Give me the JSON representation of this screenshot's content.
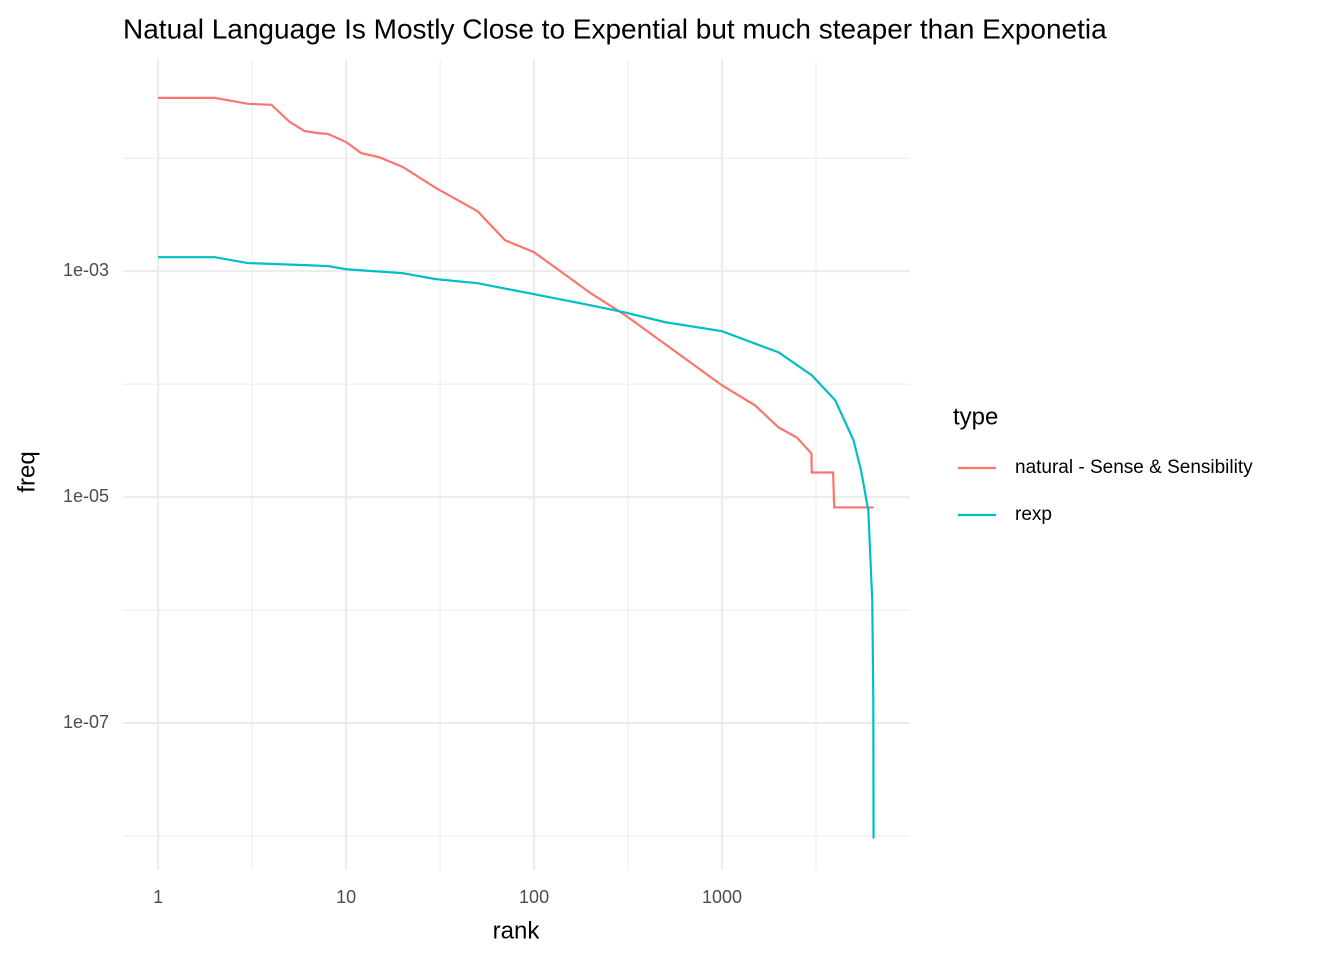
{
  "chart_data": {
    "type": "line",
    "title": "Natual Language Is Mostly Close to Expential but much steaper than Exponetia",
    "x_label": "rank",
    "y_label": "freq",
    "log_x": true,
    "log_y": true,
    "grid": true,
    "xlim": [
      0.65,
      10000
    ],
    "ylim": [
      5e-09,
      0.074
    ],
    "xticks": [
      1,
      10,
      100,
      1000
    ],
    "yticks": [
      {
        "value": 0.001,
        "label": "1e-03"
      },
      {
        "value": 1e-05,
        "label": "1e-05"
      },
      {
        "value": 1e-07,
        "label": "1e-07"
      }
    ],
    "x_minor_ticks": [
      3.162,
      31.62,
      316.2,
      3162
    ],
    "y_minor_ticks": [
      0.01,
      0.0001,
      1e-06,
      1e-08
    ],
    "legend_title": "type",
    "legend_position": "right",
    "series": [
      {
        "name": "natural -  Sense & Sensibility",
        "color": "#F8766D",
        "x": [
          1,
          2,
          3,
          4,
          5,
          6,
          7,
          8,
          10,
          12,
          15,
          20,
          30,
          50,
          70,
          100,
          150,
          200,
          300,
          500,
          1000,
          1500,
          2000,
          2500,
          2990,
          3000,
          3900,
          3950,
          6400
        ],
        "values": [
          0.0342,
          0.0342,
          0.0303,
          0.0297,
          0.021,
          0.0174,
          0.0167,
          0.0164,
          0.0139,
          0.0111,
          0.0102,
          0.00836,
          0.00545,
          0.0034,
          0.00188,
          0.00147,
          0.000903,
          0.000638,
          0.000416,
          0.000225,
          9.75e-05,
          6.48e-05,
          4.13e-05,
          3.37e-05,
          2.43e-05,
          1.65e-05,
          1.65e-05,
          8.1e-06,
          8.1e-06
        ]
      },
      {
        "name": "rexp",
        "color": "#00BFC4",
        "x": [
          1,
          2,
          3,
          6,
          8,
          10,
          20,
          30,
          50,
          100,
          200,
          300,
          500,
          1000,
          2000,
          3000,
          4000,
          5000,
          5500,
          6000,
          6300,
          6380,
          6400
        ],
        "values": [
          0.00133,
          0.00133,
          0.00118,
          0.00113,
          0.00111,
          0.00104,
          0.00096,
          0.00085,
          0.000783,
          0.000625,
          0.000499,
          0.000433,
          0.000353,
          0.000294,
          0.000191,
          0.00012,
          7.2e-05,
          3.2e-05,
          1.7e-05,
          7.6e-06,
          1.2e-06,
          1.57e-07,
          9.5e-09
        ]
      }
    ]
  }
}
